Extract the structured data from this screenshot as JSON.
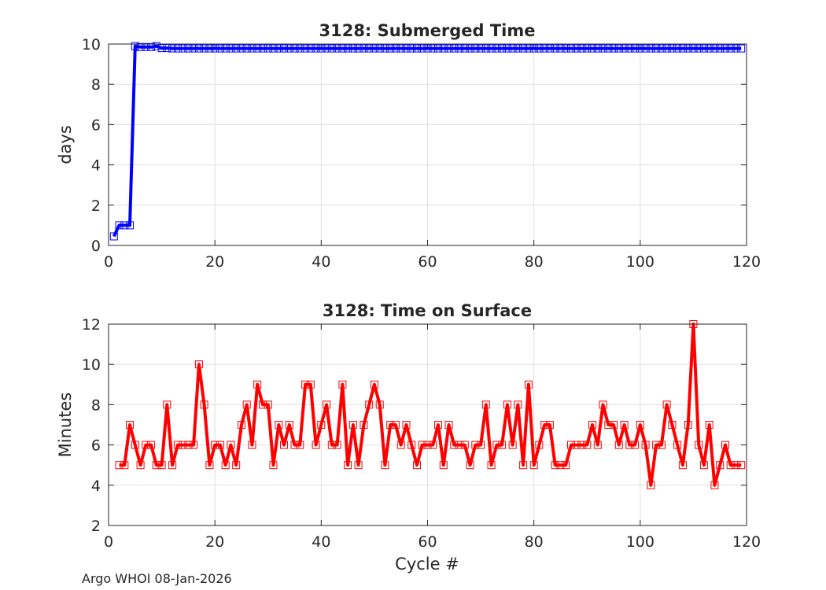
{
  "footer": "Argo WHOI 08-Jan-2026",
  "chart_data": [
    {
      "type": "line",
      "title": "3128: Submerged Time",
      "xlabel": "",
      "ylabel": "days",
      "xlim": [
        0,
        120
      ],
      "ylim": [
        0,
        10
      ],
      "xticks": [
        0,
        20,
        40,
        60,
        80,
        100,
        120
      ],
      "yticks": [
        0,
        2,
        4,
        6,
        8,
        10
      ],
      "grid": true,
      "color": "#0000ff",
      "marker": "square",
      "x": [
        1,
        2,
        3,
        4,
        5,
        6,
        7,
        8,
        9,
        10,
        11,
        12,
        13,
        14,
        15,
        16,
        17,
        18,
        19,
        20,
        21,
        22,
        23,
        24,
        25,
        26,
        27,
        28,
        29,
        30,
        31,
        32,
        33,
        34,
        35,
        36,
        37,
        38,
        39,
        40,
        41,
        42,
        43,
        44,
        45,
        46,
        47,
        48,
        49,
        50,
        51,
        52,
        53,
        54,
        55,
        56,
        57,
        58,
        59,
        60,
        61,
        62,
        63,
        64,
        65,
        66,
        67,
        68,
        69,
        70,
        71,
        72,
        73,
        74,
        75,
        76,
        77,
        78,
        79,
        80,
        81,
        82,
        83,
        84,
        85,
        86,
        87,
        88,
        89,
        90,
        91,
        92,
        93,
        94,
        95,
        96,
        97,
        98,
        99,
        100,
        101,
        102,
        103,
        104,
        105,
        106,
        107,
        108,
        109,
        110,
        111,
        112,
        113,
        114,
        115,
        116,
        117,
        118,
        119
      ],
      "y": [
        0.45,
        1.0,
        1.0,
        1.0,
        9.9,
        9.85,
        9.85,
        9.85,
        9.9,
        9.8,
        9.8,
        9.78,
        9.78,
        9.78,
        9.78,
        9.78,
        9.78,
        9.78,
        9.78,
        9.78,
        9.78,
        9.78,
        9.78,
        9.78,
        9.78,
        9.78,
        9.78,
        9.78,
        9.78,
        9.78,
        9.78,
        9.78,
        9.78,
        9.78,
        9.78,
        9.78,
        9.78,
        9.78,
        9.78,
        9.78,
        9.78,
        9.78,
        9.78,
        9.78,
        9.78,
        9.78,
        9.78,
        9.78,
        9.78,
        9.78,
        9.78,
        9.78,
        9.78,
        9.78,
        9.78,
        9.78,
        9.78,
        9.78,
        9.78,
        9.78,
        9.78,
        9.78,
        9.78,
        9.78,
        9.78,
        9.78,
        9.78,
        9.78,
        9.78,
        9.78,
        9.78,
        9.78,
        9.78,
        9.78,
        9.78,
        9.78,
        9.78,
        9.78,
        9.78,
        9.78,
        9.78,
        9.78,
        9.78,
        9.78,
        9.78,
        9.78,
        9.78,
        9.78,
        9.78,
        9.78,
        9.78,
        9.78,
        9.78,
        9.78,
        9.78,
        9.78,
        9.78,
        9.78,
        9.78,
        9.78,
        9.78,
        9.78,
        9.78,
        9.78,
        9.78,
        9.78,
        9.78,
        9.78,
        9.78,
        9.78,
        9.78,
        9.78,
        9.78,
        9.78,
        9.78,
        9.78,
        9.78,
        9.78,
        9.78
      ]
    },
    {
      "type": "line",
      "title": "3128: Time on Surface",
      "xlabel": "Cycle #",
      "ylabel": "Minutes",
      "xlim": [
        0,
        120
      ],
      "ylim": [
        2,
        12
      ],
      "xticks": [
        0,
        20,
        40,
        60,
        80,
        100,
        120
      ],
      "yticks": [
        2,
        4,
        6,
        8,
        10,
        12
      ],
      "grid": true,
      "color": "#ff0000",
      "marker": "square",
      "x": [
        2,
        3,
        4,
        5,
        6,
        7,
        8,
        9,
        10,
        11,
        12,
        13,
        14,
        15,
        16,
        17,
        18,
        19,
        20,
        21,
        22,
        23,
        24,
        25,
        26,
        27,
        28,
        29,
        30,
        31,
        32,
        33,
        34,
        35,
        36,
        37,
        38,
        39,
        40,
        41,
        42,
        43,
        44,
        45,
        46,
        47,
        48,
        49,
        50,
        51,
        52,
        53,
        54,
        55,
        56,
        57,
        58,
        59,
        60,
        61,
        62,
        63,
        64,
        65,
        66,
        67,
        68,
        69,
        70,
        71,
        72,
        73,
        74,
        75,
        76,
        77,
        78,
        79,
        80,
        81,
        82,
        83,
        84,
        85,
        86,
        87,
        88,
        89,
        90,
        91,
        92,
        93,
        94,
        95,
        96,
        97,
        98,
        99,
        100,
        101,
        102,
        103,
        104,
        105,
        106,
        107,
        108,
        109,
        110,
        111,
        112,
        113,
        114,
        115,
        116,
        117,
        118,
        119
      ],
      "y": [
        5,
        5,
        7,
        6,
        5,
        6,
        6,
        5,
        5,
        8,
        5,
        6,
        6,
        6,
        6,
        10,
        8,
        5,
        6,
        6,
        5,
        6,
        5,
        7,
        8,
        6,
        9,
        8,
        8,
        5,
        7,
        6,
        7,
        6,
        6,
        9,
        9,
        6,
        7,
        8,
        6,
        6,
        9,
        5,
        7,
        5,
        7,
        8,
        9,
        8,
        5,
        7,
        7,
        6,
        7,
        6,
        5,
        6,
        6,
        6,
        7,
        5,
        7,
        6,
        6,
        6,
        5,
        6,
        6,
        8,
        5,
        6,
        6,
        8,
        6,
        8,
        5,
        9,
        5,
        6,
        7,
        7,
        5,
        5,
        5,
        6,
        6,
        6,
        6,
        7,
        6,
        8,
        7,
        7,
        6,
        7,
        6,
        6,
        7,
        6,
        4,
        6,
        6,
        8,
        7,
        6,
        5,
        7,
        12,
        6,
        5,
        7,
        4,
        5,
        6,
        5,
        5,
        5
      ]
    }
  ]
}
